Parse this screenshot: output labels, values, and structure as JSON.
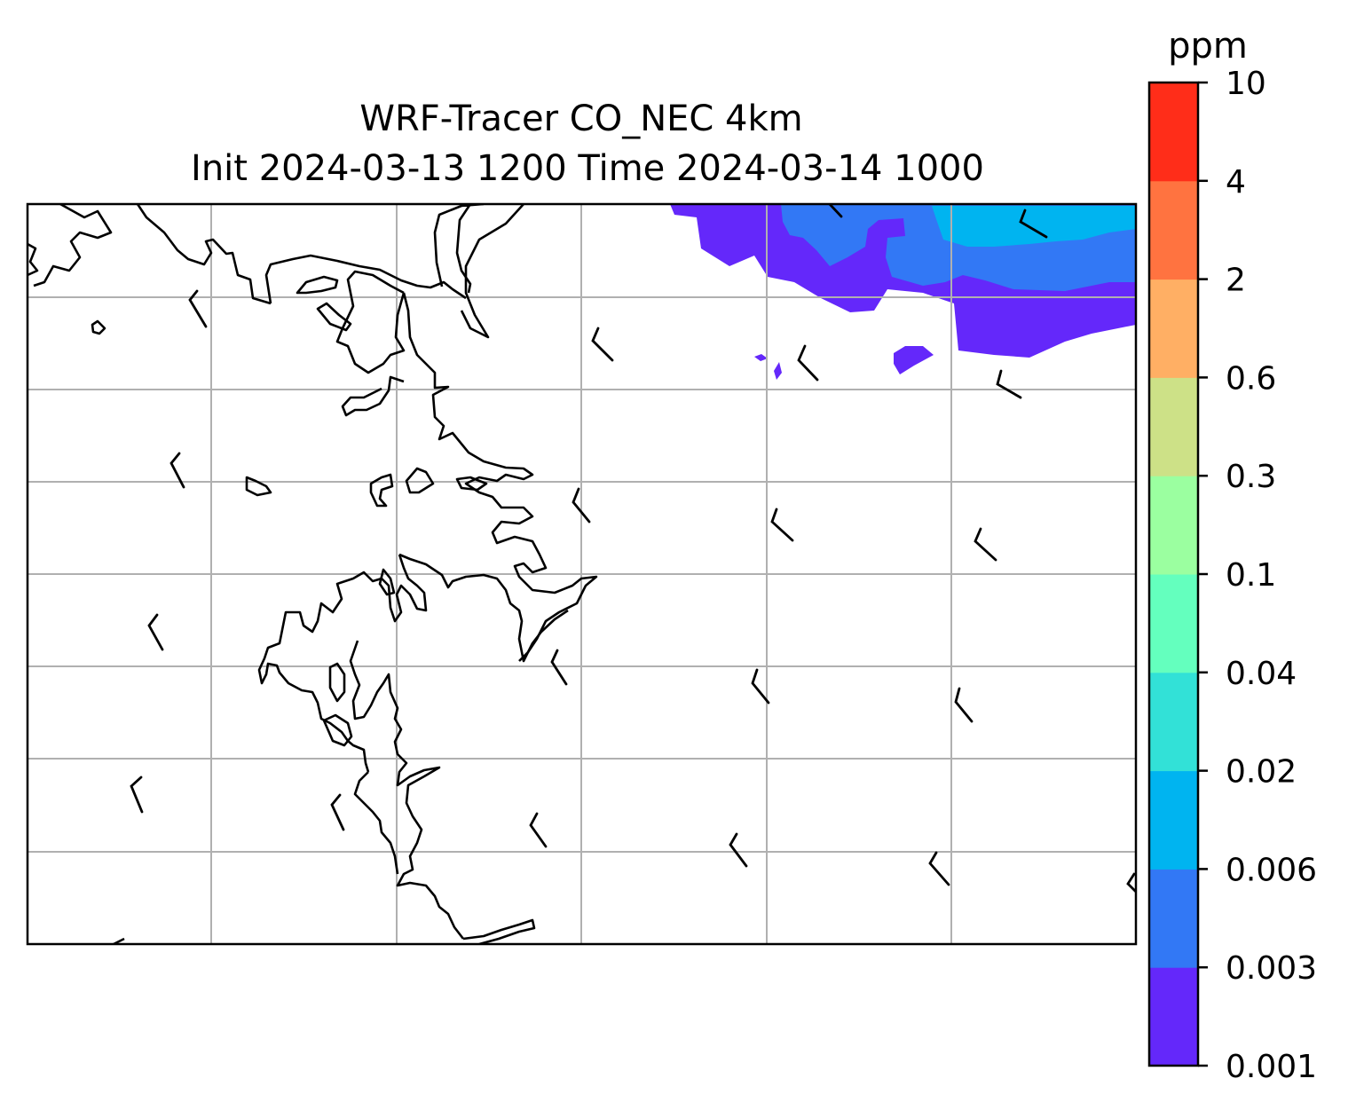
{
  "title_line1": "WRF-Tracer CO_NEC 4km",
  "title_line2": "Init 2024-03-13 1200 Time 2024-03-14 1000",
  "colorbar": {
    "unit": "ppm",
    "ticks": [
      "0.001",
      "0.003",
      "0.006",
      "0.02",
      "0.04",
      "0.1",
      "0.3",
      "0.6",
      "2",
      "4",
      "10"
    ],
    "colors": [
      "#6428fa",
      "#3278f5",
      "#00b4f0",
      "#32e1d7",
      "#64ffbe",
      "#9bffa0",
      "#cde187",
      "#ffaf64",
      "#ff7340",
      "#ff2d19"
    ]
  },
  "map": {
    "coastline_color": "#000000",
    "gridline_color": "#b0b0b0",
    "grid": true,
    "wind_barbs": true
  }
}
